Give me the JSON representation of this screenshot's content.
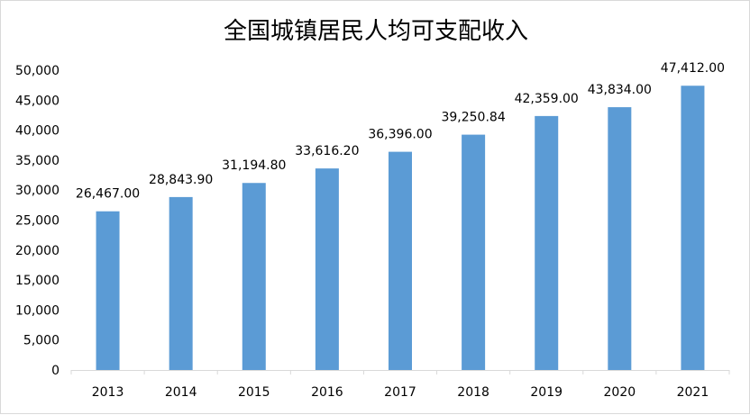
{
  "chart_data": {
    "type": "bar",
    "title": "全国城镇居民人均可支配收入",
    "xlabel": "",
    "ylabel": "",
    "categories": [
      "2013",
      "2014",
      "2015",
      "2016",
      "2017",
      "2018",
      "2019",
      "2020",
      "2021"
    ],
    "values": [
      26467.0,
      28843.9,
      31194.8,
      33616.2,
      36396.0,
      39250.84,
      42359.0,
      43834.0,
      47412.0
    ],
    "data_labels": [
      "26,467.00",
      "28,843.90",
      "31,194.80",
      "33,616.20",
      "36,396.00",
      "39,250.84",
      "42,359.00",
      "43,834.00",
      "47,412.00"
    ],
    "y_ticks": [
      0,
      5000,
      10000,
      15000,
      20000,
      25000,
      30000,
      35000,
      40000,
      45000,
      50000
    ],
    "y_tick_labels": [
      "0",
      "5,000",
      "10,000",
      "15,000",
      "20,000",
      "25,000",
      "30,000",
      "35,000",
      "40,000",
      "45,000",
      "50,000"
    ],
    "ylim": [
      0,
      50000
    ],
    "grid": false,
    "legend": "none",
    "colors": {
      "bar": "#5b9bd5",
      "axis": "#d9d9d9",
      "text": "#000000"
    }
  }
}
